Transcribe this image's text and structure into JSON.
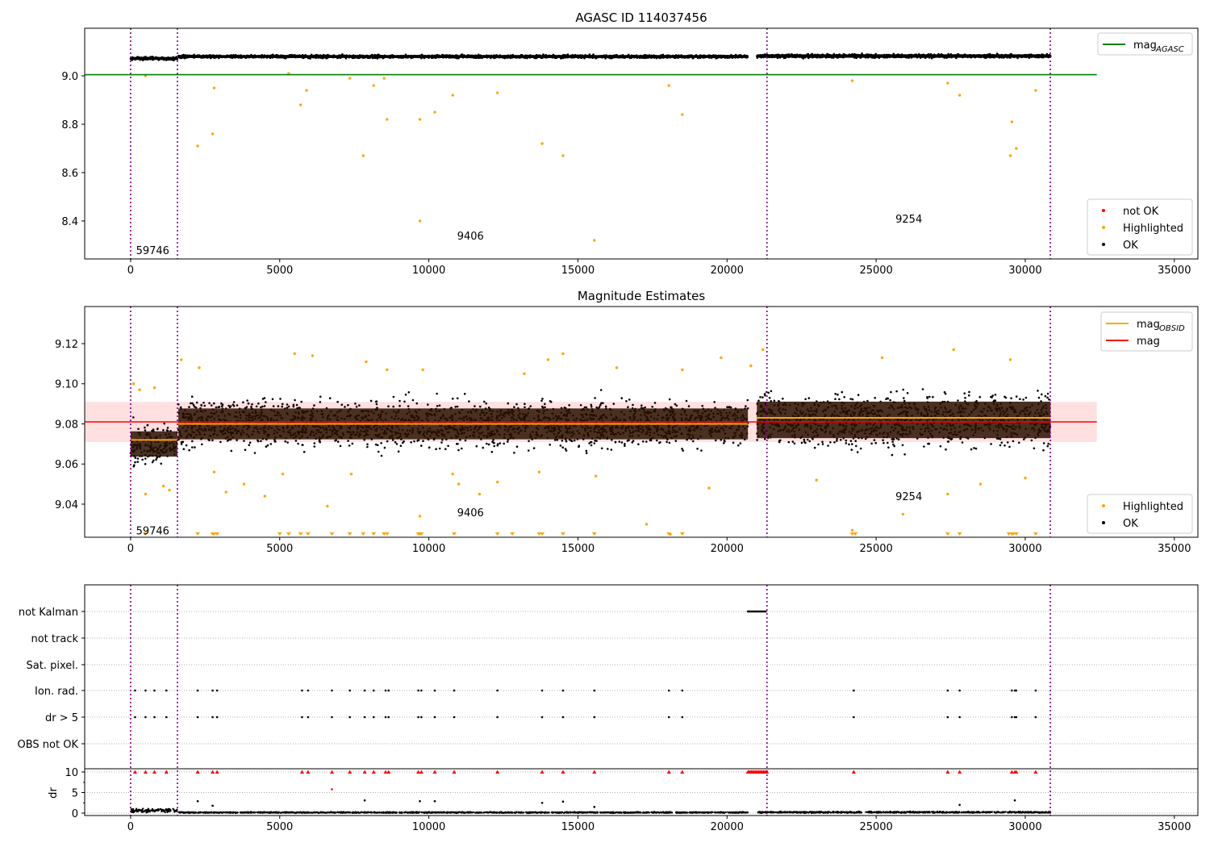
{
  "chart_data": [
    {
      "type": "scatter",
      "title": "AGASC ID 114037456",
      "xlim": [
        -1540,
        35790
      ],
      "ylim": [
        8.243,
        9.197
      ],
      "xticks": [
        0,
        5000,
        10000,
        15000,
        20000,
        25000,
        30000,
        35000
      ],
      "yticks": [
        9.0,
        8.8,
        8.6,
        8.4
      ],
      "ytick_labels": [
        "9.0",
        "8.8",
        "8.6",
        "8.4"
      ],
      "vlines": [
        0,
        1570,
        21340,
        30840
      ],
      "mag_agasc": 9.005,
      "hline_xmax": 32400,
      "segments": [
        {
          "x": [
            0,
            1570
          ],
          "mean": 9.072,
          "spread": 0.012
        },
        {
          "x": [
            1600,
            20700
          ],
          "mean": 9.08,
          "spread": 0.012
        },
        {
          "x": [
            21000,
            30850
          ],
          "mean": 9.082,
          "spread": 0.014
        }
      ],
      "highlighted": [
        [
          500,
          9.0
        ],
        [
          2250,
          8.71
        ],
        [
          2750,
          8.76
        ],
        [
          2800,
          8.95
        ],
        [
          5300,
          9.01
        ],
        [
          5700,
          8.88
        ],
        [
          5900,
          8.94
        ],
        [
          7350,
          8.99
        ],
        [
          7800,
          8.67
        ],
        [
          8150,
          8.96
        ],
        [
          8500,
          8.99
        ],
        [
          8600,
          8.82
        ],
        [
          9700,
          8.4
        ],
        [
          9700,
          8.82
        ],
        [
          10200,
          8.85
        ],
        [
          10800,
          8.92
        ],
        [
          12300,
          8.93
        ],
        [
          13800,
          8.72
        ],
        [
          14500,
          8.67
        ],
        [
          15550,
          8.32
        ],
        [
          18050,
          8.96
        ],
        [
          18500,
          8.84
        ],
        [
          24200,
          8.98
        ],
        [
          27400,
          8.97
        ],
        [
          27800,
          8.92
        ],
        [
          29550,
          8.81
        ],
        [
          29700,
          8.7
        ],
        [
          29500,
          8.67
        ],
        [
          30350,
          8.94
        ]
      ],
      "annotations": [
        {
          "text": "59746",
          "x": 180,
          "y": 8.28
        },
        {
          "text": "9406",
          "x": 10950,
          "y": 8.34
        },
        {
          "text": "9254",
          "x": 25650,
          "y": 8.41
        }
      ],
      "legend_upper": [
        {
          "label": "mag",
          "sub": "AGASC",
          "color": "#008000",
          "kind": "line"
        }
      ],
      "legend_lower": [
        {
          "label": "not OK",
          "color": "#ff0000"
        },
        {
          "label": "Highlighted",
          "color": "#ffa500"
        },
        {
          "label": "OK",
          "color": "#000000"
        }
      ]
    },
    {
      "type": "scatter",
      "title": "Magnitude Estimates",
      "xlim": [
        -1540,
        35790
      ],
      "ylim": [
        9.0235,
        9.1385
      ],
      "xticks": [
        0,
        5000,
        10000,
        15000,
        20000,
        25000,
        30000,
        35000
      ],
      "yticks": [
        9.12,
        9.1,
        9.08,
        9.06,
        9.04
      ],
      "ytick_labels": [
        "9.12",
        "9.10",
        "9.08",
        "9.06",
        "9.04"
      ],
      "vlines": [
        0,
        1570,
        21340,
        30840
      ],
      "mag": 9.081,
      "mag_band": [
        9.071,
        9.091
      ],
      "hline_xmax": 32400,
      "mag_obsid": [
        {
          "x": [
            0,
            1570
          ],
          "y": 9.072
        },
        {
          "x": [
            1570,
            20700
          ],
          "y": 9.08
        },
        {
          "x": [
            21000,
            30850
          ],
          "y": 9.083
        }
      ],
      "segments": [
        {
          "x": [
            0,
            1570
          ],
          "mean": 9.07,
          "spread": 0.009
        },
        {
          "x": [
            1600,
            20700
          ],
          "mean": 9.08,
          "spread": 0.011
        },
        {
          "x": [
            21000,
            30850
          ],
          "mean": 9.082,
          "spread": 0.013
        }
      ],
      "highlighted": [
        [
          100,
          9.1
        ],
        [
          300,
          9.097
        ],
        [
          500,
          9.045
        ],
        [
          800,
          9.098
        ],
        [
          1100,
          9.049
        ],
        [
          1300,
          9.047
        ],
        [
          1700,
          9.112
        ],
        [
          2300,
          9.108
        ],
        [
          2800,
          9.056
        ],
        [
          3200,
          9.046
        ],
        [
          3800,
          9.05
        ],
        [
          4500,
          9.044
        ],
        [
          5100,
          9.055
        ],
        [
          5500,
          9.115
        ],
        [
          6100,
          9.114
        ],
        [
          6600,
          9.039
        ],
        [
          7400,
          9.055
        ],
        [
          7900,
          9.111
        ],
        [
          8600,
          9.107
        ],
        [
          9700,
          9.034
        ],
        [
          9800,
          9.107
        ],
        [
          10800,
          9.055
        ],
        [
          11000,
          9.05
        ],
        [
          11700,
          9.045
        ],
        [
          12300,
          9.051
        ],
        [
          13200,
          9.105
        ],
        [
          13700,
          9.056
        ],
        [
          14000,
          9.112
        ],
        [
          14500,
          9.115
        ],
        [
          15600,
          9.054
        ],
        [
          16300,
          9.108
        ],
        [
          17300,
          9.03
        ],
        [
          18100,
          9.025
        ],
        [
          18500,
          9.107
        ],
        [
          19400,
          9.048
        ],
        [
          19800,
          9.113
        ],
        [
          20800,
          9.109
        ],
        [
          21200,
          9.117
        ],
        [
          23000,
          9.052
        ],
        [
          24200,
          9.027
        ],
        [
          25200,
          9.113
        ],
        [
          25900,
          9.035
        ],
        [
          27400,
          9.045
        ],
        [
          27600,
          9.117
        ],
        [
          28500,
          9.05
        ],
        [
          29500,
          9.112
        ],
        [
          30000,
          9.053
        ]
      ],
      "clipped": [
        500,
        2250,
        2750,
        2800,
        2900,
        5000,
        5300,
        5700,
        5950,
        6750,
        7350,
        7800,
        8150,
        8500,
        8600,
        9650,
        9700,
        9750,
        10850,
        12300,
        12800,
        13700,
        13800,
        14500,
        15550,
        18050,
        18500,
        24200,
        24300,
        27400,
        27800,
        29450,
        29550,
        29600,
        29700,
        30350
      ],
      "annotations": [
        {
          "text": "59746",
          "x": 180,
          "y": 9.027
        },
        {
          "text": "9406",
          "x": 10950,
          "y": 9.036
        },
        {
          "text": "9254",
          "x": 25650,
          "y": 9.044
        }
      ],
      "legend_upper": [
        {
          "label": "mag",
          "sub": "OBSID",
          "color": "#ffa500",
          "kind": "line"
        },
        {
          "label": "mag",
          "sub": "",
          "color": "#ff0000",
          "kind": "line"
        }
      ],
      "legend_lower": [
        {
          "label": "Highlighted",
          "color": "#ffa500"
        },
        {
          "label": "OK",
          "color": "#000000"
        }
      ]
    },
    {
      "type": "scatter",
      "title": "",
      "xlim": [
        -1540,
        35790
      ],
      "xticks": [
        0,
        5000,
        10000,
        15000,
        20000,
        25000,
        30000,
        35000
      ],
      "vlines": [
        0,
        1570,
        21340,
        30840
      ],
      "flag_labels": [
        "not Kalman",
        "not track",
        "Sat. pixel.",
        "Ion. rad.",
        "dr > 5",
        "OBS not OK"
      ],
      "flag_x": [
        150,
        500,
        800,
        1200,
        2250,
        2750,
        2900,
        5750,
        5950,
        6750,
        7350,
        7850,
        8150,
        8550,
        8650,
        9650,
        9750,
        10200,
        10850,
        12300,
        13800,
        14500,
        15550,
        18050,
        18500,
        24250,
        27400,
        27800,
        29550,
        29650,
        29700,
        30350
      ],
      "not_kalman_range": [
        20700,
        21300
      ],
      "dr_ylabel": "dr",
      "dr_ylim": [
        -0.5,
        10.5
      ],
      "dr_yticks": [
        10,
        5,
        0
      ],
      "dr_ytick_labels": [
        "10",
        "5",
        "0"
      ],
      "dr_clip_value": 10,
      "dr_clip_range": [
        20700,
        21350
      ],
      "dr_segments": [
        {
          "x": [
            0,
            1570
          ],
          "mean": 0.6,
          "spread": 0.4
        },
        {
          "x": [
            1600,
            20700
          ],
          "mean": 0.15,
          "spread": 0.12
        },
        {
          "x": [
            21000,
            30850
          ],
          "mean": 0.2,
          "spread": 0.15
        }
      ],
      "dr_outliers": [
        [
          6750,
          5.8
        ],
        [
          7850,
          3.1
        ],
        [
          10200,
          2.9
        ],
        [
          9700,
          2.9
        ],
        [
          2250,
          2.9
        ],
        [
          2750,
          1.8
        ],
        [
          13800,
          2.5
        ],
        [
          14500,
          2.8
        ],
        [
          29650,
          3.1
        ],
        [
          27800,
          2.0
        ],
        [
          15550,
          1.5
        ]
      ]
    }
  ]
}
